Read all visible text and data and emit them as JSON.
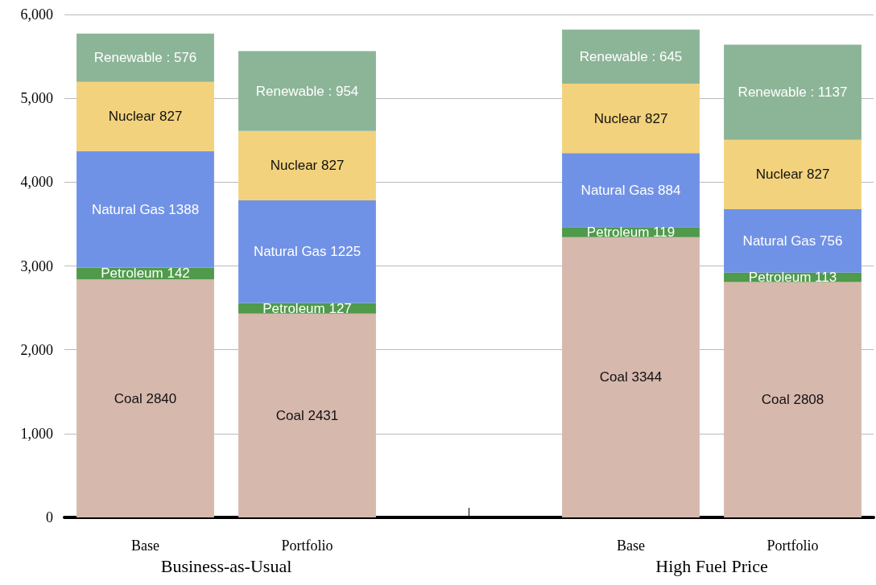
{
  "chart_data": {
    "type": "bar",
    "stacked": true,
    "categories": [
      "Base",
      "Portfolio",
      null,
      "Base",
      "Portfolio"
    ],
    "series": [
      {
        "color": "#d6b8ad",
        "values": [
          2840,
          2431,
          null,
          3344,
          2808
        ],
        "value_labels": [
          "Coal 2840",
          "Coal 2431",
          null,
          "Coal 3344",
          "Coal 2808"
        ]
      },
      {
        "color": "#4f9a4b",
        "values": [
          142,
          127,
          null,
          119,
          113
        ],
        "value_labels": [
          "Petroleum 142",
          "Petroleum 127",
          null,
          "Petroleum 119",
          "Petroleum 113"
        ]
      },
      {
        "color": "#7092e6",
        "values": [
          1388,
          1225,
          null,
          884,
          756
        ],
        "value_labels": [
          "Natural Gas 1388",
          "Natural Gas 1225",
          null,
          "Natural Gas 884",
          "Natural Gas 756"
        ]
      },
      {
        "color": "#f3d27d",
        "values": [
          827,
          827,
          null,
          827,
          827
        ],
        "value_labels": [
          "Nuclear 827",
          "Nuclear 827",
          null,
          "Nuclear 827",
          "Nuclear 827"
        ]
      },
      {
        "color": "#8cb597",
        "values": [
          576,
          954,
          null,
          645,
          1137
        ],
        "value_labels": [
          "Renewable : 576",
          "Renewable : 954",
          null,
          "Renewable : 645",
          "Renewable : 1137"
        ]
      }
    ],
    "ylim": [
      0,
      6000
    ],
    "yticks": [
      {
        "value": 0,
        "label": "0"
      },
      {
        "value": 1000,
        "label": "1,000"
      },
      {
        "value": 2000,
        "label": "2,000"
      },
      {
        "value": 3000,
        "label": "3,000"
      },
      {
        "value": 4000,
        "label": "4,000"
      },
      {
        "value": 5000,
        "label": "5,000"
      },
      {
        "value": 6000,
        "label": "6,000"
      }
    ],
    "grid": "y",
    "legend": false,
    "annotations": [
      "Business-as-Usual",
      "High Fuel Price"
    ]
  }
}
